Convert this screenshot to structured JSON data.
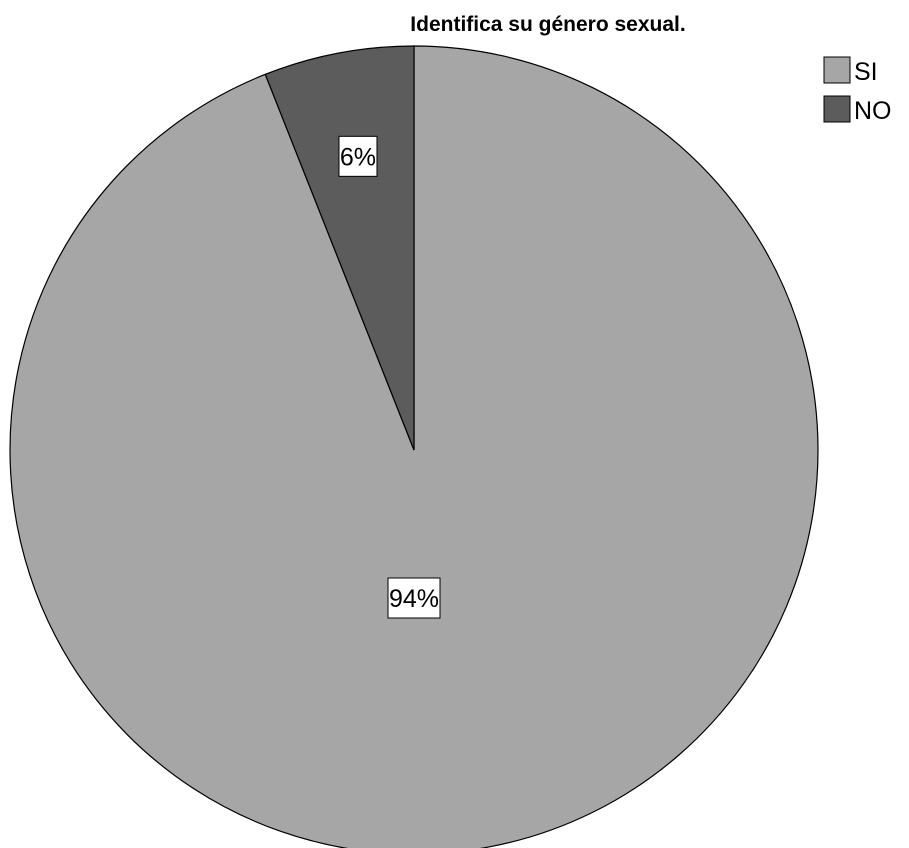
{
  "chart_data": {
    "type": "pie",
    "title": "Identifica su género sexual.",
    "categories": [
      "SI",
      "NO"
    ],
    "values": [
      94,
      6
    ],
    "data_labels": [
      "94%",
      "6%"
    ],
    "colors": [
      "#a6a6a6",
      "#5c5c5c"
    ],
    "start": "12 o'clock",
    "direction": "clockwise",
    "legend": {
      "placement": "top-right",
      "entries": [
        "SI",
        "NO"
      ]
    }
  }
}
